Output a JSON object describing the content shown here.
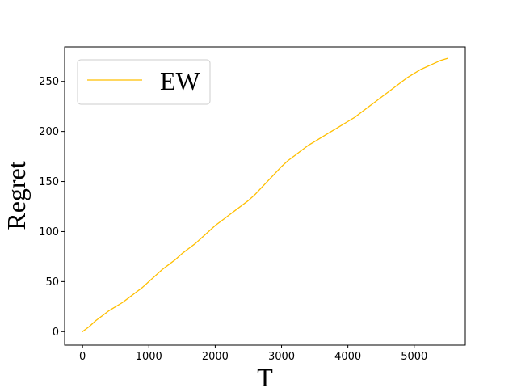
{
  "chart_data": {
    "type": "line",
    "title": "",
    "xlabel": "T",
    "ylabel": "Regret",
    "xlim": [
      -270,
      5770
    ],
    "ylim": [
      -13.5,
      284.5
    ],
    "xticks": [
      0,
      1000,
      2000,
      3000,
      4000,
      5000
    ],
    "yticks": [
      0,
      50,
      100,
      150,
      200,
      250
    ],
    "xtick_labels": [
      "0",
      "1000",
      "2000",
      "3000",
      "4000",
      "5000"
    ],
    "ytick_labels": [
      "0",
      "50",
      "100",
      "150",
      "200",
      "250"
    ],
    "grid": false,
    "legend_position": "upper-left",
    "series": [
      {
        "name": "EW",
        "color": "#ffbf00",
        "x": [
          0,
          100,
          200,
          300,
          400,
          500,
          600,
          700,
          800,
          900,
          1000,
          1100,
          1200,
          1300,
          1400,
          1500,
          1600,
          1700,
          1800,
          1900,
          2000,
          2100,
          2200,
          2300,
          2400,
          2500,
          2600,
          2700,
          2800,
          2900,
          3000,
          3100,
          3200,
          3300,
          3400,
          3500,
          3600,
          3700,
          3800,
          3900,
          4000,
          4100,
          4200,
          4300,
          4400,
          4500,
          4600,
          4700,
          4800,
          4900,
          5000,
          5100,
          5200,
          5300,
          5400,
          5500
        ],
        "y": [
          0,
          5,
          11,
          16,
          21,
          25,
          29,
          34,
          39,
          44,
          50,
          56,
          62,
          67,
          72,
          78,
          83,
          88,
          94,
          100,
          106,
          111,
          116,
          121,
          126,
          131,
          137,
          144,
          151,
          158,
          165,
          171,
          176,
          181,
          186,
          190,
          194,
          198,
          202,
          206,
          210,
          214,
          219,
          224,
          229,
          234,
          239,
          244,
          249,
          254,
          258,
          262,
          265,
          268,
          271,
          273
        ]
      }
    ]
  }
}
